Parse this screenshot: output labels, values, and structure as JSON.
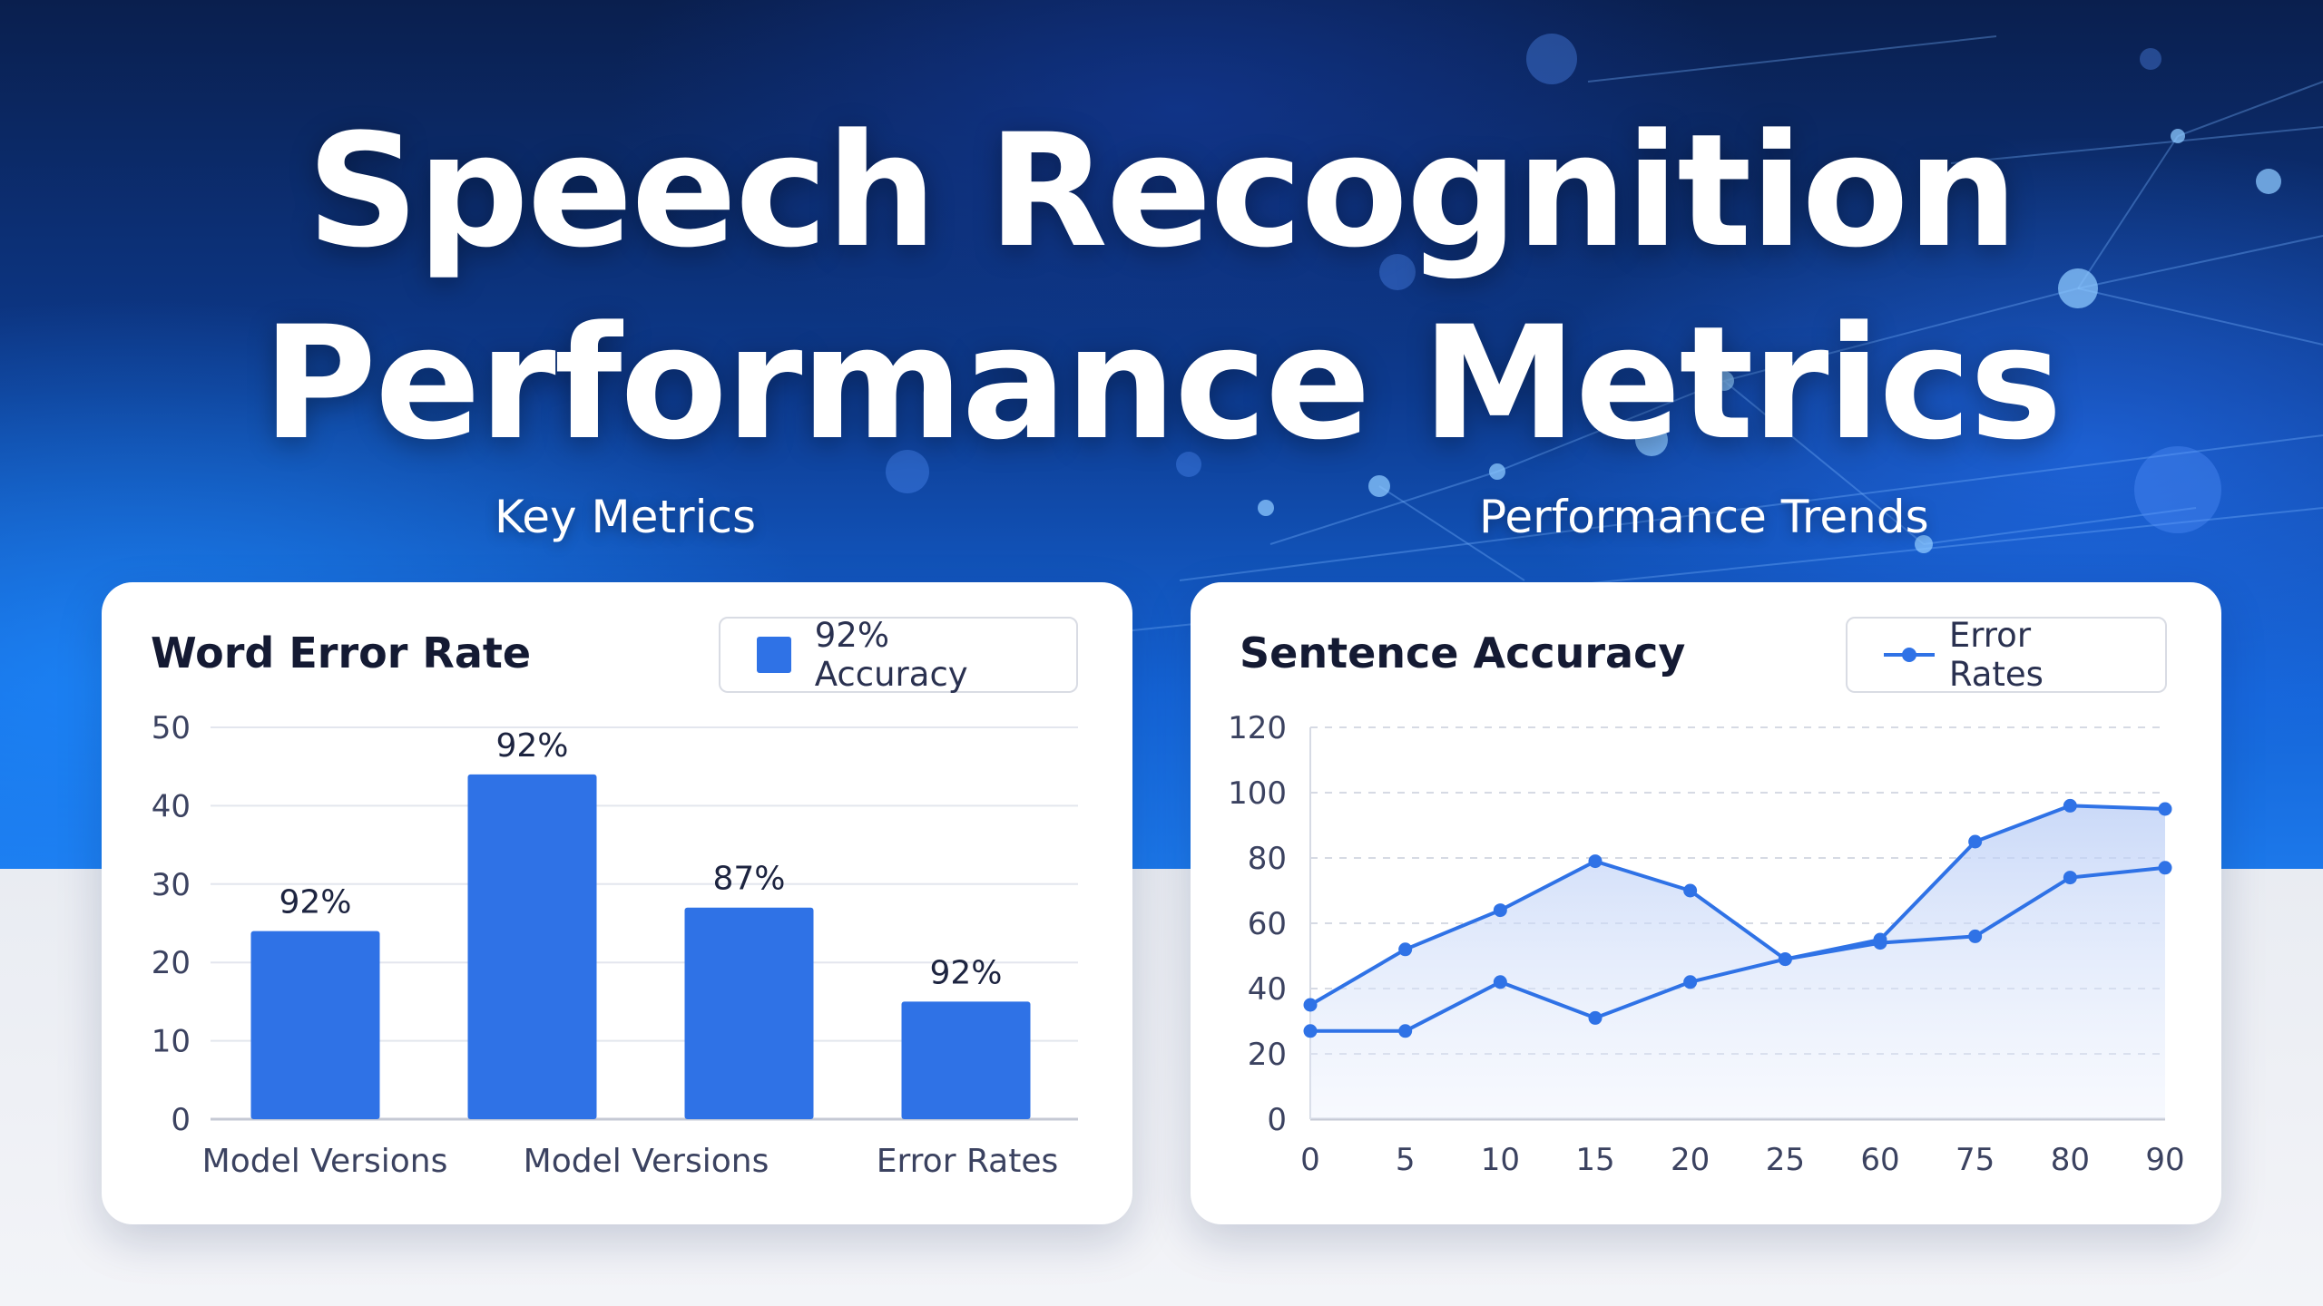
{
  "page": {
    "title_line1": "Speech Recognition",
    "title_line2": "Performance Metrics",
    "left_section_label": "Key Metrics",
    "right_section_label": "Performance Trends"
  },
  "colors": {
    "accent": "#2f72e6",
    "grid": "#e3e6ee",
    "axis_text": "#3b4260",
    "card_bg": "#ffffff"
  },
  "chart_data": [
    {
      "type": "bar",
      "title": "Word Error Rate",
      "legend": [
        "92% Accuracy"
      ],
      "legend_position": "top-right",
      "categories": [
        "Model Versions",
        "",
        "Model Versions",
        "Error Rates"
      ],
      "series": [
        {
          "name": "92% Accuracy",
          "values": [
            24,
            44,
            27,
            15
          ],
          "data_labels": [
            "92%",
            "92%",
            "87%",
            "92%"
          ]
        }
      ],
      "yticks": [
        "0",
        "10",
        "20",
        "30",
        "40",
        "50"
      ],
      "ylim": [
        0,
        50
      ],
      "grid": true,
      "color": "#2f72e6"
    },
    {
      "type": "line",
      "title": "Sentence Accuracy",
      "legend": [
        "Error Rates"
      ],
      "legend_position": "top-right",
      "x": [
        "0",
        "5",
        "10",
        "15",
        "20",
        "25",
        "60",
        "75",
        "80",
        "90"
      ],
      "series": [
        {
          "name": "Error Rates",
          "values": [
            35,
            52,
            64,
            79,
            70,
            49,
            55,
            85,
            96,
            95
          ]
        },
        {
          "values": [
            27,
            27,
            42,
            31,
            42,
            49,
            54,
            56,
            74,
            77
          ]
        }
      ],
      "yticks": [
        "0",
        "20",
        "40",
        "60",
        "80",
        "100",
        "120"
      ],
      "ylim": [
        0,
        120
      ],
      "grid": true,
      "grid_style": "dashed",
      "shaded_area": true,
      "color": "#2f72e6"
    }
  ]
}
